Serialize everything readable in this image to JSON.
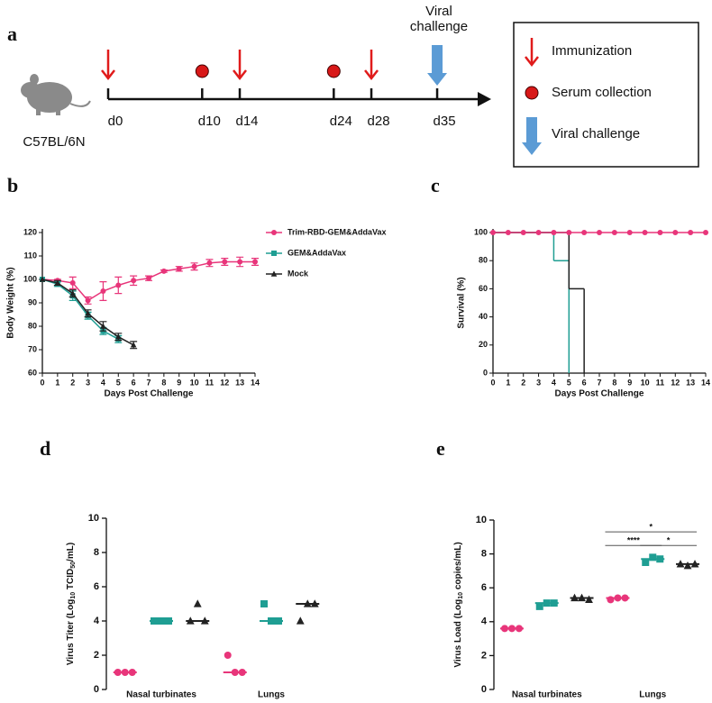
{
  "timeline": {
    "panel": "a",
    "strain": "C57BL/6N",
    "ticks": [
      {
        "value": 0,
        "label": "d0"
      },
      {
        "value": 10,
        "label": "d10"
      },
      {
        "value": 14,
        "label": "d14"
      },
      {
        "value": 24,
        "label": "d24"
      },
      {
        "value": 28,
        "label": "d28"
      },
      {
        "value": 35,
        "label": "d35"
      }
    ],
    "immunization_days": [
      0,
      14,
      28
    ],
    "serum_days": [
      10,
      24
    ],
    "challenge_days": [
      35
    ],
    "challenge_label": [
      "Viral",
      "challenge"
    ],
    "legend": [
      "Immunization",
      "Serum collection",
      "Viral challenge"
    ],
    "colors": {
      "immunization": "#e01b1b",
      "serum": "#d81818",
      "challenge": "#5b9bd5"
    }
  },
  "chart_data": [
    {
      "panel": "b",
      "type": "line",
      "xlabel": "Days Post Challenge",
      "ylabel": "Body Weight (%)",
      "x": [
        0,
        1,
        2,
        3,
        4,
        5,
        6,
        7,
        8,
        9,
        10,
        11,
        12,
        13,
        14
      ],
      "xlim": [
        0,
        14
      ],
      "xticks": [
        0,
        1,
        2,
        3,
        4,
        5,
        6,
        7,
        8,
        9,
        10,
        11,
        12,
        13,
        14
      ],
      "ylim": [
        60,
        120
      ],
      "yticks": [
        60,
        70,
        80,
        90,
        100,
        110,
        120
      ],
      "legend": "right",
      "series": [
        {
          "name": "Trim-RBD-GEM&AddaVax",
          "color": "#e8357a",
          "marker": "circle",
          "values": [
            100,
            99.5,
            98.5,
            91,
            95,
            97.5,
            99.5,
            100.5,
            103.5,
            104.5,
            105.5,
            107,
            107.5,
            107.5,
            107.5
          ],
          "errors": [
            0,
            0.5,
            2.5,
            1.5,
            4,
            3.5,
            2,
            1,
            0.5,
            1,
            1.5,
            1.5,
            1.5,
            2,
            1.5
          ]
        },
        {
          "name": "GEM&AddaVax",
          "color": "#1f9e93",
          "marker": "square",
          "values": [
            100,
            98,
            93,
            84.5,
            78,
            74.5,
            null,
            null,
            null,
            null,
            null,
            null,
            null,
            null,
            null
          ],
          "errors": [
            0,
            1,
            2,
            1.5,
            1.5,
            1.5,
            null,
            null,
            null,
            null,
            null,
            null,
            null,
            null,
            null
          ]
        },
        {
          "name": "Mock",
          "color": "#222222",
          "marker": "triangle",
          "values": [
            100,
            98.5,
            94,
            85.5,
            80,
            75.5,
            72,
            null,
            null,
            null,
            null,
            null,
            null,
            null,
            null
          ],
          "errors": [
            0,
            1,
            1.5,
            1.5,
            2,
            1.5,
            1.5,
            null,
            null,
            null,
            null,
            null,
            null,
            null,
            null
          ]
        }
      ]
    },
    {
      "panel": "c",
      "type": "step",
      "xlabel": "Days Post Challenge",
      "ylabel": "Survival (%)",
      "xlim": [
        0,
        14
      ],
      "xticks": [
        0,
        1,
        2,
        3,
        4,
        5,
        6,
        7,
        8,
        9,
        10,
        11,
        12,
        13,
        14
      ],
      "ylim": [
        0,
        100
      ],
      "yticks": [
        0,
        20,
        40,
        60,
        80,
        100
      ],
      "series": [
        {
          "color": "#1f9e93",
          "x": [
            0,
            4,
            5
          ],
          "values": [
            100,
            80,
            0
          ]
        },
        {
          "color": "#222222",
          "x": [
            0,
            5,
            6
          ],
          "values": [
            100,
            60,
            0
          ]
        },
        {
          "color": "#e8357a",
          "marker": "circle",
          "x": [
            0,
            1,
            2,
            3,
            4,
            5,
            6,
            7,
            8,
            9,
            10,
            11,
            12,
            13,
            14
          ],
          "values": [
            100,
            100,
            100,
            100,
            100,
            100,
            100,
            100,
            100,
            100,
            100,
            100,
            100,
            100,
            100
          ]
        }
      ]
    },
    {
      "panel": "d",
      "type": "dot",
      "ylabel": [
        "Virus Titer (Log",
        "10",
        " TCID",
        "50",
        "/mL)"
      ],
      "categories": [
        "Nasal turbinates",
        "Lungs"
      ],
      "ylim": [
        0,
        10
      ],
      "yticks": [
        0,
        2,
        4,
        6,
        8,
        10
      ],
      "series": [
        {
          "color": "#e8357a",
          "marker": "circle",
          "values": [
            [
              1,
              1,
              1
            ],
            [
              2,
              1,
              1
            ]
          ],
          "medians": [
            1,
            1
          ]
        },
        {
          "color": "#1f9e93",
          "marker": "square",
          "values": [
            [
              4,
              4,
              4
            ],
            [
              5,
              4,
              4
            ]
          ],
          "medians": [
            4,
            4
          ]
        },
        {
          "color": "#222222",
          "marker": "triangle",
          "values": [
            [
              4,
              5,
              4
            ],
            [
              4,
              5,
              5
            ]
          ],
          "medians": [
            4,
            5
          ]
        }
      ]
    },
    {
      "panel": "e",
      "type": "dot",
      "ylabel": [
        "Virus Load (Log",
        "10",
        " copies/mL)"
      ],
      "categories": [
        "Nasal turbinates",
        "Lungs"
      ],
      "ylim": [
        0,
        10
      ],
      "yticks": [
        0,
        2,
        4,
        6,
        8,
        10
      ],
      "annotations": [
        "****",
        "*",
        "*"
      ],
      "series": [
        {
          "color": "#e8357a",
          "marker": "circle",
          "values": [
            [
              3.6,
              3.6,
              3.6
            ],
            [
              5.3,
              5.4,
              5.4
            ]
          ],
          "medians": [
            3.6,
            5.4
          ]
        },
        {
          "color": "#1f9e93",
          "marker": "square",
          "values": [
            [
              4.9,
              5.1,
              5.1
            ],
            [
              7.5,
              7.8,
              7.7
            ]
          ],
          "medians": [
            5.1,
            7.7
          ]
        },
        {
          "color": "#222222",
          "marker": "triangle",
          "values": [
            [
              5.4,
              5.4,
              5.3
            ],
            [
              7.4,
              7.3,
              7.4
            ]
          ],
          "medians": [
            5.4,
            7.4
          ]
        }
      ]
    }
  ]
}
